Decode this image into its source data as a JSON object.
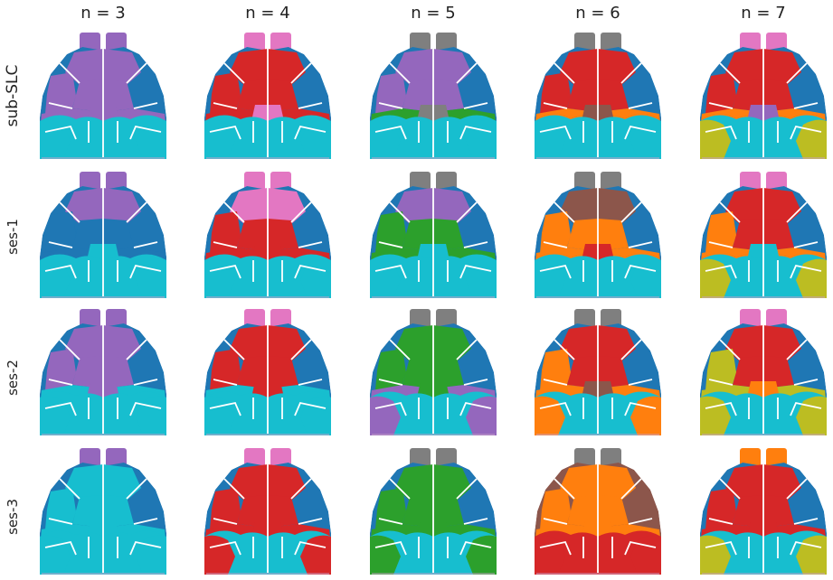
{
  "figure": {
    "columns": [
      "n = 3",
      "n = 4",
      "n = 5",
      "n = 6",
      "n = 7"
    ],
    "rows": [
      "sub-SLC",
      "ses-1",
      "ses-2",
      "ses-3"
    ]
  },
  "palette": {
    "blue": "#1f77b4",
    "orange": "#ff7f0e",
    "green": "#2ca02c",
    "red": "#d62728",
    "purple": "#9467bd",
    "brown": "#8c564b",
    "pink": "#e377c2",
    "gray": "#7f7f7f",
    "olive": "#bcbd22",
    "cyan": "#17becf"
  },
  "maps": [
    [
      {
        "bulbs": "purple",
        "top": "purple",
        "side": "blue",
        "mid": "purple",
        "front": "purple",
        "lower": "purple",
        "post": "cyan",
        "pocket": "cyan",
        "patch": "purple"
      },
      {
        "bulbs": "pink",
        "top": "red",
        "side": "blue",
        "mid": "red",
        "front": "red",
        "lower": "red",
        "post": "cyan",
        "pocket": "cyan",
        "patch": "pink"
      },
      {
        "bulbs": "gray",
        "top": "purple",
        "side": "blue",
        "mid": "purple",
        "front": "purple",
        "lower": "green",
        "post": "cyan",
        "pocket": "cyan",
        "patch": "gray"
      },
      {
        "bulbs": "gray",
        "top": "red",
        "side": "blue",
        "mid": "red",
        "front": "red",
        "lower": "orange",
        "post": "cyan",
        "pocket": "cyan",
        "patch": "brown"
      },
      {
        "bulbs": "pink",
        "top": "red",
        "side": "blue",
        "mid": "red",
        "front": "red",
        "lower": "orange",
        "post": "cyan",
        "pocket": "olive",
        "patch": "purple"
      }
    ],
    [
      {
        "bulbs": "purple",
        "top": "purple",
        "side": "blue",
        "mid": "blue",
        "front": "blue",
        "lower": "blue",
        "post": "cyan",
        "pocket": "cyan",
        "patch": "cyan"
      },
      {
        "bulbs": "pink",
        "top": "pink",
        "side": "blue",
        "mid": "red",
        "front": "red",
        "lower": "red",
        "post": "cyan",
        "pocket": "cyan",
        "patch": "red"
      },
      {
        "bulbs": "gray",
        "top": "purple",
        "side": "blue",
        "mid": "green",
        "front": "green",
        "lower": "green",
        "post": "cyan",
        "pocket": "cyan",
        "patch": "cyan"
      },
      {
        "bulbs": "gray",
        "top": "brown",
        "side": "blue",
        "mid": "orange",
        "front": "orange",
        "lower": "orange",
        "post": "cyan",
        "pocket": "cyan",
        "patch": "red"
      },
      {
        "bulbs": "pink",
        "top": "red",
        "side": "blue",
        "mid": "red",
        "front": "orange",
        "lower": "orange",
        "post": "cyan",
        "pocket": "olive",
        "patch": "cyan"
      }
    ],
    [
      {
        "bulbs": "purple",
        "top": "purple",
        "side": "blue",
        "mid": "purple",
        "front": "purple",
        "lower": "cyan",
        "post": "cyan",
        "pocket": "cyan",
        "patch": "purple"
      },
      {
        "bulbs": "pink",
        "top": "red",
        "side": "blue",
        "mid": "red",
        "front": "red",
        "lower": "cyan",
        "post": "cyan",
        "pocket": "cyan",
        "patch": "red"
      },
      {
        "bulbs": "gray",
        "top": "green",
        "side": "blue",
        "mid": "green",
        "front": "green",
        "lower": "purple",
        "post": "cyan",
        "pocket": "purple",
        "patch": "green"
      },
      {
        "bulbs": "gray",
        "top": "red",
        "side": "blue",
        "mid": "red",
        "front": "orange",
        "lower": "orange",
        "post": "cyan",
        "pocket": "orange",
        "patch": "brown"
      },
      {
        "bulbs": "pink",
        "top": "red",
        "side": "blue",
        "mid": "red",
        "front": "olive",
        "lower": "olive",
        "post": "cyan",
        "pocket": "olive",
        "patch": "orange"
      }
    ],
    [
      {
        "bulbs": "purple",
        "top": "cyan",
        "side": "blue",
        "mid": "cyan",
        "front": "cyan",
        "lower": "cyan",
        "post": "cyan",
        "pocket": "cyan",
        "patch": "cyan"
      },
      {
        "bulbs": "pink",
        "top": "red",
        "side": "blue",
        "mid": "red",
        "front": "red",
        "lower": "red",
        "post": "cyan",
        "pocket": "red",
        "patch": "red"
      },
      {
        "bulbs": "gray",
        "top": "green",
        "side": "blue",
        "mid": "green",
        "front": "green",
        "lower": "green",
        "post": "cyan",
        "pocket": "green",
        "patch": "green"
      },
      {
        "bulbs": "gray",
        "top": "orange",
        "side": "brown",
        "mid": "orange",
        "front": "orange",
        "lower": "orange",
        "post": "red",
        "pocket": "red",
        "patch": "orange"
      },
      {
        "bulbs": "orange",
        "top": "red",
        "side": "blue",
        "mid": "red",
        "front": "red",
        "lower": "red",
        "post": "cyan",
        "pocket": "olive",
        "patch": "red"
      }
    ]
  ]
}
